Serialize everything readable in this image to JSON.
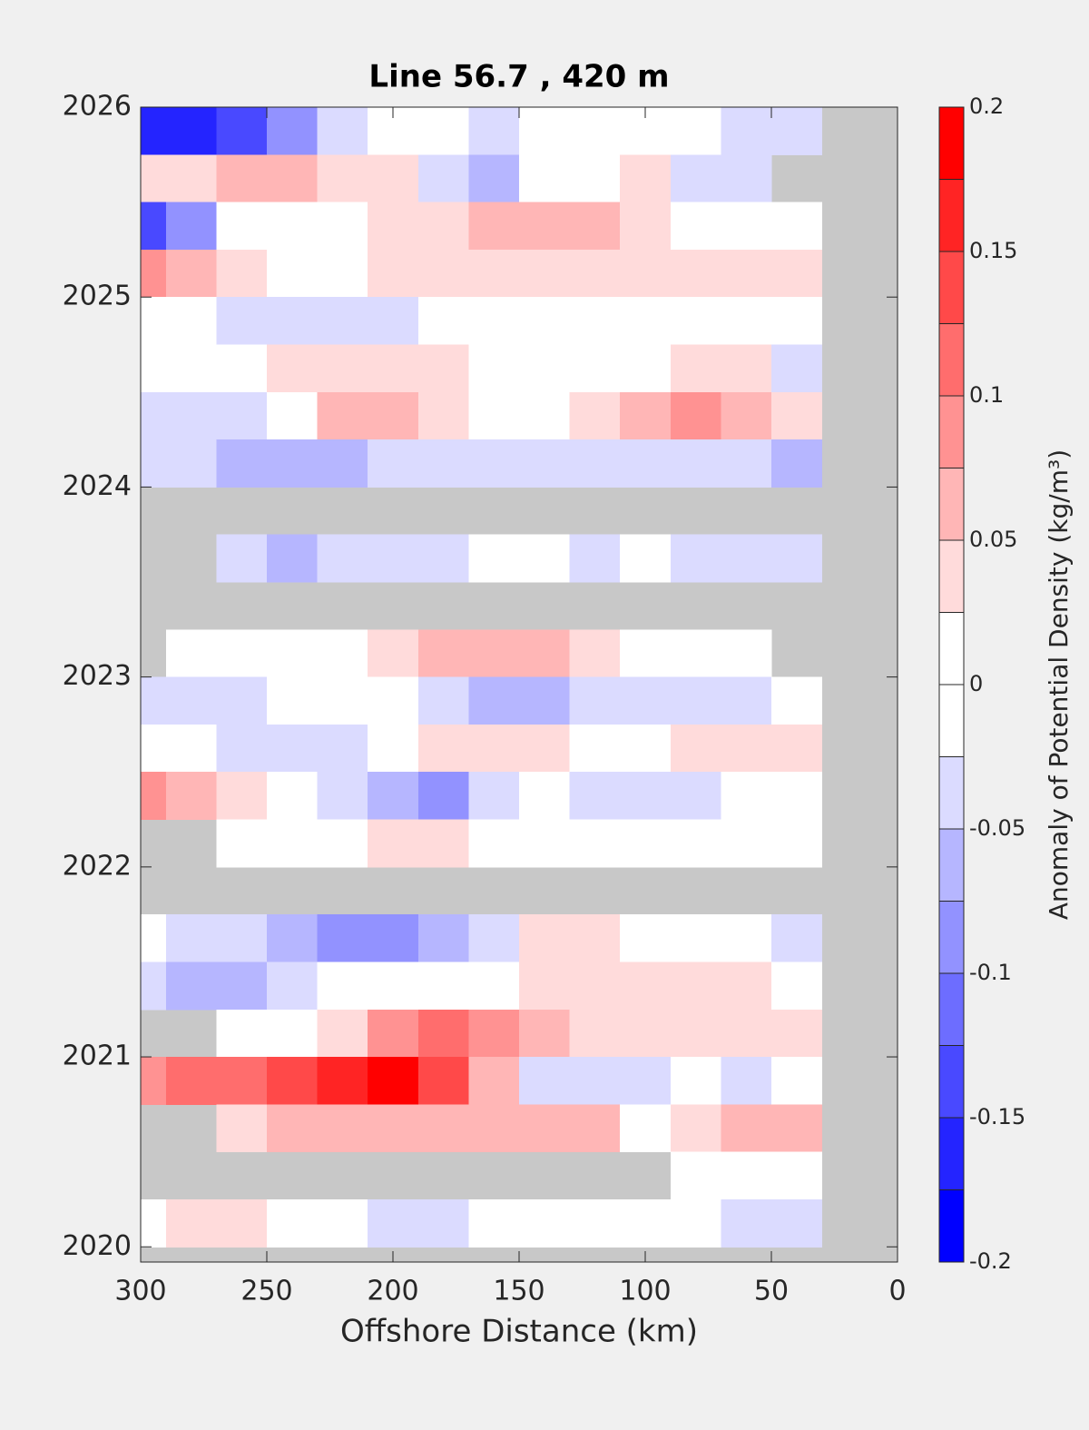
{
  "chart_data": {
    "type": "contour",
    "title": "Line 56.7 , 420 m",
    "xlabel": "Offshore Distance (km)",
    "colorbar_label": "Anomaly of Potential Density (kg/m³)",
    "xlim": [
      300,
      0
    ],
    "ylim": [
      2019.92,
      2026
    ],
    "xticks": [
      300,
      250,
      200,
      150,
      100,
      50,
      0
    ],
    "yticks": [
      2020,
      2021,
      2022,
      2023,
      2024,
      2025,
      2026
    ],
    "clim": [
      -0.2,
      0.2
    ],
    "cticks": [
      -0.2,
      -0.15,
      -0.1,
      -0.05,
      0,
      0.05,
      0.1,
      0.15,
      0.2
    ],
    "colors": [
      "#0000ff",
      "#2424ff",
      "#4949ff",
      "#6d6dff",
      "#9292ff",
      "#b6b6ff",
      "#dbdbff",
      "#ffffff",
      "#ffffff",
      "#ffdbdb",
      "#ffb6b6",
      "#ff9292",
      "#ff6d6d",
      "#ff4949",
      "#ff2424",
      "#ff0000"
    ],
    "nan_color": "#c8c8c8",
    "x": [
      300,
      280,
      260,
      240,
      220,
      200,
      180,
      160,
      140,
      120,
      100,
      80,
      60,
      40
    ],
    "y": [
      2025.875,
      2025.625,
      2025.375,
      2025.125,
      2024.875,
      2024.625,
      2024.375,
      2024.125,
      2023.875,
      2023.625,
      2023.375,
      2023.125,
      2022.875,
      2022.625,
      2022.375,
      2022.125,
      2021.875,
      2021.625,
      2021.375,
      2021.125,
      2020.875,
      2020.625,
      2020.375,
      2020.125
    ],
    "z": [
      [
        -0.16,
        -0.17,
        -0.13,
        -0.09,
        -0.04,
        -0.02,
        0,
        -0.03,
        -0.02,
        0,
        0,
        0,
        -0.03,
        -0.03
      ],
      [
        0.03,
        0.04,
        0.06,
        0.05,
        0.04,
        0.03,
        -0.04,
        -0.06,
        -0.02,
        0,
        0.03,
        -0.03,
        -0.05,
        null
      ],
      [
        -0.14,
        -0.1,
        -0.02,
        0,
        0.02,
        0.03,
        0.03,
        0.06,
        0.07,
        0.05,
        0.03,
        0,
        -0.02,
        0
      ],
      [
        0.09,
        0.07,
        0.04,
        0.02,
        0.02,
        0.03,
        0.04,
        0.04,
        0.03,
        0.03,
        0.03,
        0.03,
        0.03,
        0.03
      ],
      [
        0.02,
        0,
        -0.03,
        -0.04,
        -0.05,
        -0.03,
        0,
        0,
        0,
        0,
        0,
        0,
        0,
        0
      ],
      [
        0,
        0,
        0,
        0.03,
        0.03,
        0.03,
        0.03,
        0,
        0,
        0,
        0,
        0.03,
        0.04,
        -0.04
      ],
      [
        -0.03,
        -0.04,
        -0.03,
        0,
        0.05,
        0.06,
        0.04,
        0,
        0,
        0.03,
        0.06,
        0.08,
        0.05,
        0.03
      ],
      [
        -0.04,
        -0.05,
        -0.06,
        -0.06,
        -0.07,
        -0.05,
        -0.04,
        -0.03,
        -0.04,
        -0.04,
        -0.03,
        -0.04,
        -0.05,
        -0.06
      ],
      [
        null,
        null,
        null,
        null,
        null,
        null,
        null,
        null,
        null,
        null,
        null,
        null,
        null,
        null
      ],
      [
        null,
        null,
        -0.04,
        -0.07,
        -0.05,
        -0.03,
        -0.04,
        0,
        0,
        -0.03,
        0,
        -0.03,
        -0.04,
        -0.03
      ],
      [
        null,
        null,
        null,
        null,
        null,
        null,
        null,
        null,
        null,
        null,
        null,
        null,
        null,
        null
      ],
      [
        null,
        0,
        0,
        0,
        0.02,
        0.03,
        0.05,
        0.07,
        0.05,
        0.03,
        0.02,
        0.02,
        0.02,
        null
      ],
      [
        -0.03,
        -0.05,
        -0.04,
        -0.02,
        0,
        0,
        -0.04,
        -0.06,
        -0.07,
        -0.05,
        -0.04,
        -0.03,
        -0.03,
        0
      ],
      [
        0,
        0,
        -0.03,
        -0.04,
        -0.05,
        0,
        0.03,
        0.04,
        0.03,
        0,
        0,
        0.03,
        0.04,
        0.03
      ],
      [
        0.08,
        0.06,
        0.03,
        0,
        -0.04,
        -0.06,
        -0.08,
        -0.04,
        0,
        -0.03,
        -0.05,
        -0.03,
        -0.02,
        0
      ],
      [
        null,
        null,
        0,
        0,
        0,
        0.03,
        0.03,
        0,
        0,
        0,
        0,
        0,
        0,
        0
      ],
      [
        null,
        null,
        null,
        null,
        null,
        null,
        null,
        null,
        null,
        null,
        null,
        null,
        null,
        null
      ],
      [
        0,
        -0.03,
        -0.04,
        -0.06,
        -0.08,
        -0.1,
        -0.06,
        -0.03,
        0.03,
        0.03,
        0,
        0.02,
        0,
        -0.04
      ],
      [
        -0.04,
        -0.07,
        -0.06,
        -0.03,
        0,
        0,
        0,
        0,
        0.03,
        0.04,
        0.04,
        0.03,
        0.03,
        0.02
      ],
      [
        null,
        null,
        0,
        0,
        0.04,
        0.08,
        0.1,
        0.08,
        0.05,
        0.03,
        0.03,
        0.03,
        0.03,
        0.04
      ],
      [
        0.08,
        0.1,
        0.12,
        0.14,
        0.17,
        0.18,
        0.14,
        0.06,
        -0.03,
        -0.04,
        -0.03,
        0,
        -0.03,
        -0.02
      ],
      [
        null,
        null,
        0.04,
        0.05,
        0.06,
        0.05,
        0.05,
        0.06,
        0.07,
        0.05,
        0,
        0.03,
        0.06,
        0.05
      ],
      [
        null,
        null,
        null,
        null,
        null,
        null,
        null,
        null,
        null,
        null,
        null,
        0,
        0,
        0
      ],
      [
        0,
        0.03,
        0.03,
        0,
        0,
        -0.03,
        -0.04,
        0,
        0,
        0,
        0,
        0,
        -0.03,
        -0.04
      ]
    ]
  }
}
